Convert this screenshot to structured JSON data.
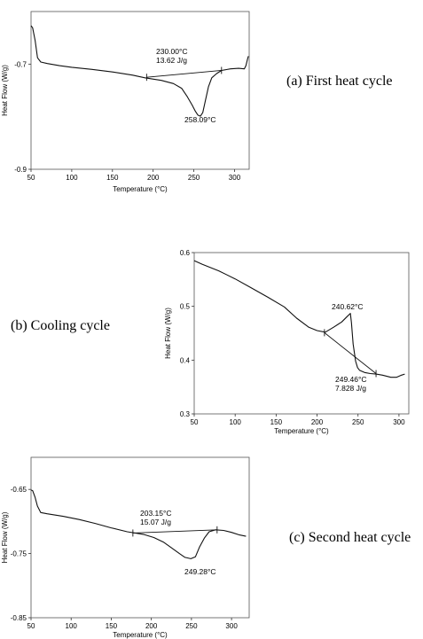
{
  "chart_data": [
    {
      "type": "line",
      "caption": "(a) First heat cycle",
      "xlabel": "Temperature (°C)",
      "ylabel": "Heat Flow (W/g)",
      "xticks": [
        50,
        100,
        150,
        200,
        250,
        300
      ],
      "yticks": [
        -0.7,
        -0.9
      ],
      "xlim": [
        50,
        318
      ],
      "ylim": [
        -0.9,
        -0.6
      ],
      "series": [
        {
          "x": [
            50,
            52,
            55,
            58,
            62,
            70,
            85,
            100,
            125,
            150,
            175,
            190,
            210,
            225,
            235,
            242,
            248,
            252,
            255,
            258.09,
            261,
            264,
            268,
            272,
            278,
            284,
            295,
            305,
            312,
            314,
            316,
            317
          ],
          "y": [
            -0.627,
            -0.631,
            -0.655,
            -0.688,
            -0.696,
            -0.699,
            -0.703,
            -0.706,
            -0.71,
            -0.715,
            -0.721,
            -0.726,
            -0.731,
            -0.737,
            -0.746,
            -0.762,
            -0.778,
            -0.79,
            -0.797,
            -0.799,
            -0.792,
            -0.771,
            -0.743,
            -0.726,
            -0.718,
            -0.712,
            -0.709,
            -0.708,
            -0.709,
            -0.703,
            -0.69,
            -0.685
          ]
        }
      ],
      "baseline": {
        "x": [
          192,
          284
        ],
        "y": [
          -0.725,
          -0.712
        ]
      },
      "annotations": [
        {
          "lines": [
            "230.00°C",
            "13.62 J/g"
          ],
          "x": 230,
          "y": -0.695
        },
        {
          "lines": [
            "258.09°C"
          ],
          "x": 258,
          "y": -0.822
        }
      ]
    },
    {
      "type": "line",
      "caption": "(b) Cooling cycle",
      "xlabel": "Temperature (°C)",
      "ylabel": "Heat Flow (W/g)",
      "xticks": [
        50,
        100,
        150,
        200,
        250,
        300
      ],
      "yticks": [
        0.6,
        0.5,
        0.4,
        0.3
      ],
      "xlim": [
        50,
        312
      ],
      "ylim": [
        0.3,
        0.6
      ],
      "series": [
        {
          "x": [
            50,
            60,
            80,
            100,
            120,
            140,
            160,
            175,
            190,
            200,
            210,
            220,
            230,
            236,
            240.62,
            242,
            244,
            247,
            249.46,
            252,
            258,
            265,
            272,
            280,
            290,
            297,
            303,
            307
          ],
          "y": [
            0.585,
            0.578,
            0.566,
            0.551,
            0.534,
            0.517,
            0.499,
            0.478,
            0.461,
            0.455,
            0.452,
            0.461,
            0.471,
            0.48,
            0.487,
            0.47,
            0.43,
            0.398,
            0.386,
            0.381,
            0.377,
            0.375,
            0.374,
            0.372,
            0.368,
            0.368,
            0.372,
            0.374
          ]
        }
      ],
      "baseline": {
        "x": [
          209,
          272
        ],
        "y": [
          0.451,
          0.375
        ]
      },
      "annotations": [
        {
          "lines": [
            "240.62°C"
          ],
          "x": 228,
          "y": 0.5
        },
        {
          "lines": [
            "249.46°C",
            "7.828 J/g"
          ],
          "x": 240,
          "y": 0.35
        }
      ]
    },
    {
      "type": "line",
      "caption": "(c) Second heat cycle",
      "xlabel": "Temperature (°C)",
      "ylabel": "Heat Flow (W/g)",
      "xticks": [
        50,
        100,
        150,
        200,
        250,
        300
      ],
      "yticks": [
        -0.65,
        -0.75,
        -0.85
      ],
      "xlim": [
        50,
        322
      ],
      "ylim": [
        -0.85,
        -0.6
      ],
      "series": [
        {
          "x": [
            50,
            52,
            55,
            58,
            62,
            70,
            90,
            110,
            130,
            150,
            170,
            190,
            203.15,
            215,
            225,
            235,
            242,
            249.28,
            255,
            260,
            266,
            272,
            280,
            290,
            300,
            310,
            318
          ],
          "y": [
            -0.651,
            -0.652,
            -0.662,
            -0.676,
            -0.686,
            -0.688,
            -0.692,
            -0.697,
            -0.703,
            -0.71,
            -0.716,
            -0.72,
            -0.725,
            -0.732,
            -0.741,
            -0.75,
            -0.756,
            -0.758,
            -0.755,
            -0.74,
            -0.726,
            -0.716,
            -0.713,
            -0.714,
            -0.717,
            -0.721,
            -0.723
          ]
        }
      ],
      "baseline": {
        "x": [
          177,
          282
        ],
        "y": [
          -0.718,
          -0.713
        ]
      },
      "annotations": [
        {
          "lines": [
            "203.15°C",
            "15.07 J/g"
          ],
          "x": 200,
          "y": -0.7
        },
        {
          "lines": [
            "249.28°C"
          ],
          "x": 249,
          "y": -0.782
        }
      ]
    }
  ]
}
